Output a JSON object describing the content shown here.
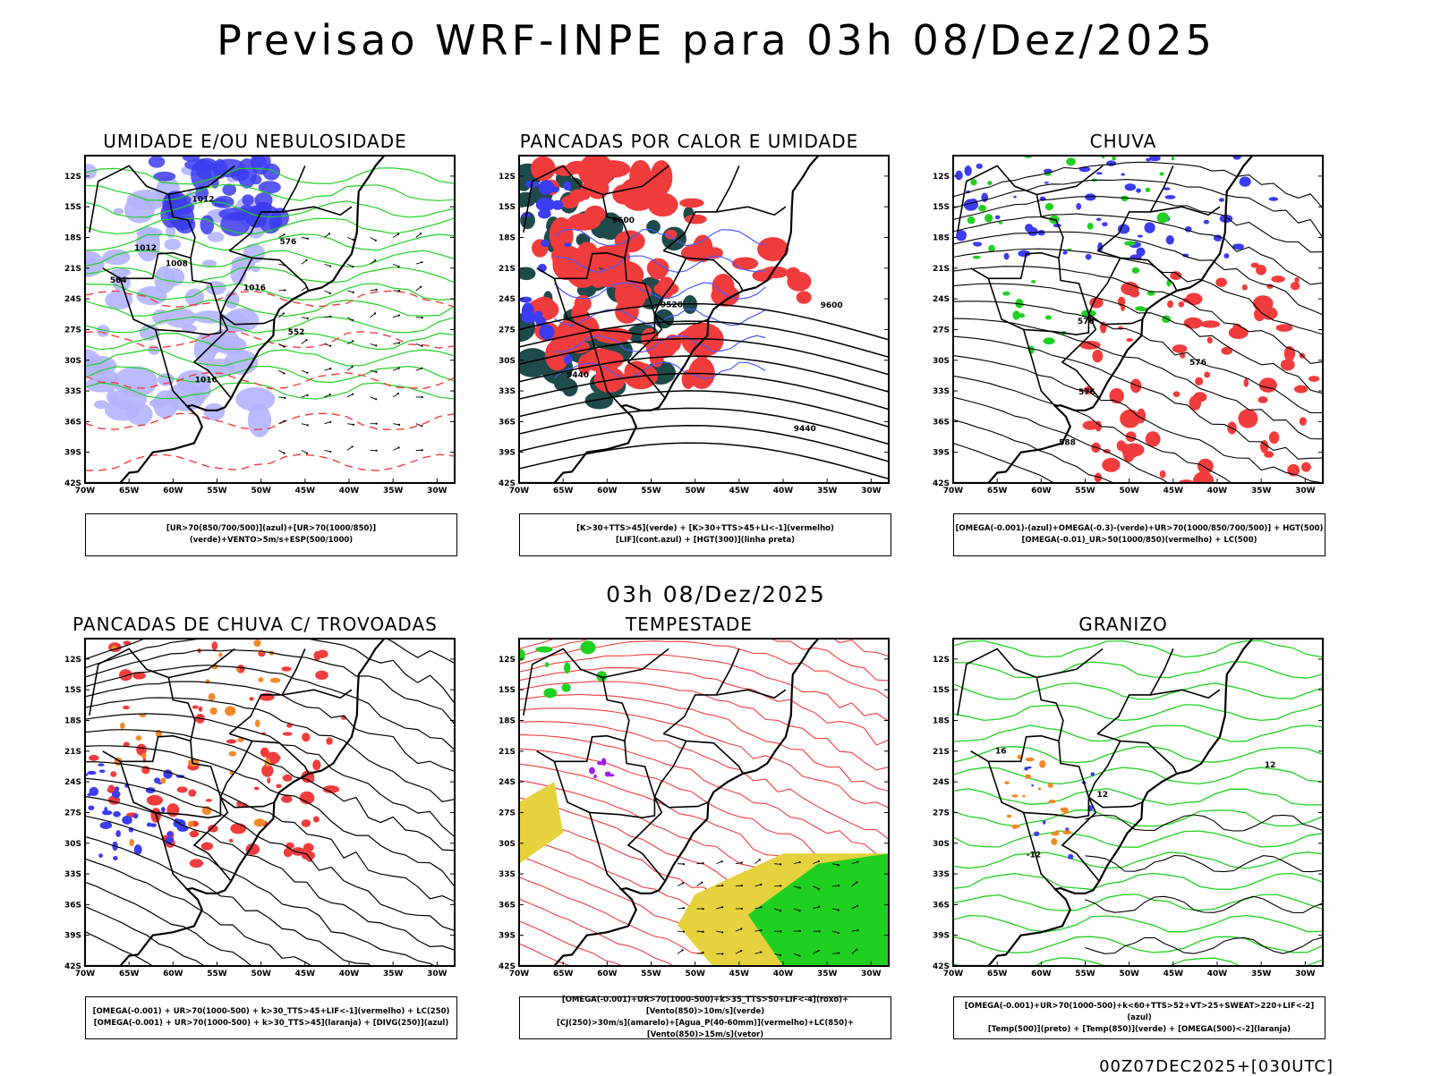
{
  "header": {
    "title": "Previsao WRF-INPE  para 03h 08/Dez/2025",
    "mid_time": "03h 08/Dez/2025",
    "run_label": "00Z07DEC2025+[030UTC]"
  },
  "axes": {
    "lat_labels": [
      "12S",
      "15S",
      "18S",
      "21S",
      "24S",
      "27S",
      "30S",
      "33S",
      "36S",
      "39S",
      "42S"
    ],
    "lon_labels": [
      "70W",
      "65W",
      "60W",
      "55W",
      "50W",
      "45W",
      "40W",
      "35W",
      "30W"
    ]
  },
  "colors": {
    "blue": "#3c3cf0",
    "light_blue": "#b4b4ff",
    "green": "#20d020",
    "red": "#f03c3c",
    "orange": "#f08a28",
    "dark_teal": "#1e4a4a",
    "yellow": "#e6d23c",
    "purple": "#a020f0"
  },
  "panels": [
    {
      "title": "UMIDADE E/OU NEBULOSIDADE",
      "legend": [
        "[UR>70(850/700/500)](azul)+[UR>70(1000/850)](verde)+VENTO>5m/s+ESP(500/1000)"
      ],
      "labels": [
        {
          "t": "1008"
        },
        {
          "t": "1012"
        },
        {
          "t": "1016"
        },
        {
          "t": "1012"
        },
        {
          "t": "1016"
        },
        {
          "t": "576"
        },
        {
          "t": "564"
        },
        {
          "t": "552"
        }
      ]
    },
    {
      "title": "PANCADAS POR CALOR E UMIDADE",
      "legend": [
        "[K>30+TTS>45](verde) + [K>30+TTS>45+LI<-1](vermelho)",
        "[LIF](cont.azul) + [HGT(300)](linha preta)"
      ],
      "labels": [
        {
          "t": "9600"
        },
        {
          "t": "9600"
        },
        {
          "t": "9520"
        },
        {
          "t": "9440"
        },
        {
          "t": "9440"
        }
      ]
    },
    {
      "title": "CHUVA",
      "legend": [
        "[OMEGA(-0.001)-(azul)+OMEGA(-0.3)-(verde)+UR>70(1000/850/700/500)] + HGT(500)",
        "[OMEGA(-0.01)_UR>50(1000/850)(vermelho) + LC(500)"
      ],
      "labels": [
        {
          "t": "588"
        },
        {
          "t": "576"
        },
        {
          "t": "576"
        },
        {
          "t": "576"
        }
      ]
    },
    {
      "title": "PANCADAS DE CHUVA C/ TROVOADAS",
      "legend": [
        "[OMEGA(-0.001) + UR>70(1000-500) + k>30_TTS>45+LIF<-1](vermelho) + LC(250)",
        "[OMEGA(-0.001) + UR>70(1000-500) + k>30_TTS>45](laranja) + [DIVG(250)](azul)"
      ],
      "labels": []
    },
    {
      "title": "TEMPESTADE",
      "legend": [
        "[OMEGA(-0.001)+UR>70(1000-500)+k>35_TTS>50+LIF<-4](roxo)+[Vento(850)>10m/s](verde)",
        "[CJ(250)>30m/s](amarelo)+[Agua_P(40-60mm)](vermelho)+LC(850)+[Vento(850)>15m/s](vetor)"
      ],
      "labels": []
    },
    {
      "title": "GRANIZO",
      "legend": [
        "[OMEGA(-0.001)+UR>70(1000-500)+k<60+TTS>52+VT>25+SWEAT>220+LIF<-2](azul)",
        "[Temp(500)](preto) + [Temp(850)](verde) + [OMEGA(500)<-2](laranja)"
      ],
      "labels": [
        {
          "t": "12"
        },
        {
          "t": "16"
        },
        {
          "t": "-12"
        },
        {
          "t": "12"
        }
      ]
    }
  ]
}
